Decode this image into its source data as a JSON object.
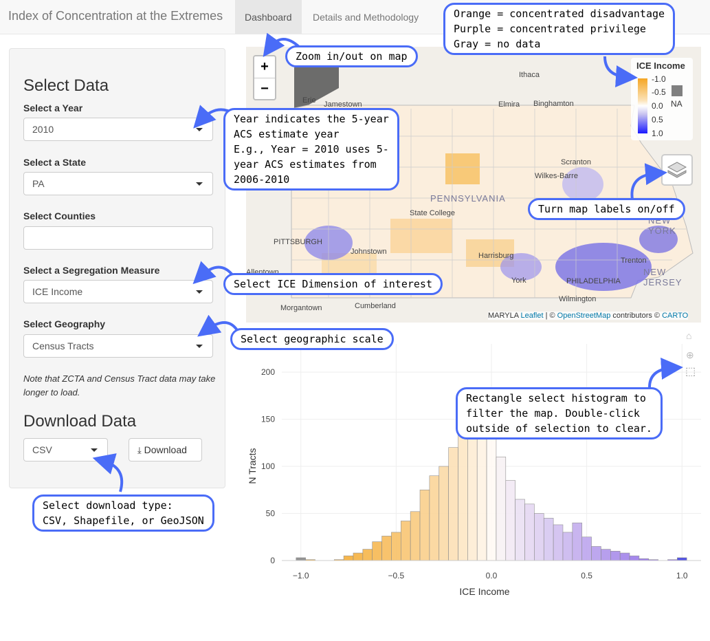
{
  "navbar": {
    "brand": "Index of Concentration at the Extremes",
    "tabs": [
      "Dashboard",
      "Details and Methodology"
    ]
  },
  "sidebar": {
    "select_heading": "Select Data",
    "year": {
      "label": "Select a Year",
      "value": "2010"
    },
    "state": {
      "label": "Select a State",
      "value": "PA"
    },
    "counties": {
      "label": "Select Counties",
      "value": ""
    },
    "measure": {
      "label": "Select a Segregation Measure",
      "value": "ICE Income"
    },
    "geography": {
      "label": "Select Geography",
      "value": "Census Tracts"
    },
    "note": "Note that ZCTA and Census Tract data may take longer to load.",
    "download_heading": "Download Data",
    "download_type": "CSV",
    "download_button": "Download"
  },
  "map": {
    "zoom_in": "+",
    "zoom_out": "−",
    "legend_title": "ICE Income",
    "legend_ticks": [
      "-1.0",
      "-0.5",
      "0.0",
      "0.5",
      "1.0"
    ],
    "legend_na": "NA",
    "attribution_prefix": "MARYLA",
    "attribution_leaflet": "Leaflet",
    "attribution_sep": " | © ",
    "attribution_osm": "OpenStreetMap",
    "attribution_mid": " contributors © ",
    "attribution_carto": "CARTO",
    "cities": [
      "Erie",
      "Jamestown",
      "Ithaca",
      "Elmira",
      "Binghamton",
      "Scranton",
      "Wilkes-Barre",
      "State College",
      "PITTSBURGH",
      "Johnstown",
      "Harrisburg",
      "York",
      "PHILADELPHIA",
      "Trenton",
      "Wilmington",
      "Morgantown",
      "Cumberland",
      "Allentown"
    ],
    "states": [
      "PENNSYLVANIA",
      "NEW JERSEY",
      "NEW YORK"
    ]
  },
  "callouts": {
    "colors": "Orange = concentrated disadvantage\nPurple = concentrated privilege\nGray = no data",
    "zoom": "Zoom in/out on map",
    "year": "Year indicates the 5-year\nACS estimate year\nE.g., Year = 2010 uses 5-\nyear ACS estimates from\n2006-2010",
    "labels": "Turn map labels on/off",
    "dimension": "Select ICE Dimension of interest",
    "scale": "Select geographic scale",
    "rect": "Rectangle select histogram to\nfilter the map. Double-click\noutside of selection to clear.",
    "download": "Select download type:\nCSV, Shapefile, or GeoJSON"
  },
  "colors": {
    "accent": "#4a6cf7",
    "orange": "#f5a623",
    "purple": "#7b52e6"
  },
  "chart_data": {
    "type": "bar",
    "title": "",
    "xlabel": "ICE Income",
    "ylabel": "N Tracts",
    "xlim": [
      -1.1,
      1.1
    ],
    "ylim": [
      0,
      230
    ],
    "xticks": [
      -1.0,
      -0.5,
      0.0,
      0.5,
      1.0
    ],
    "xtick_labels": [
      "−1.0",
      "−0.5",
      "0.0",
      "0.5",
      "1.0"
    ],
    "yticks": [
      0,
      50,
      100,
      150,
      200
    ],
    "bin_width": 0.05,
    "x": [
      -1.0,
      -0.95,
      -0.9,
      -0.85,
      -0.8,
      -0.75,
      -0.7,
      -0.65,
      -0.6,
      -0.55,
      -0.5,
      -0.45,
      -0.4,
      -0.35,
      -0.3,
      -0.25,
      -0.2,
      -0.15,
      -0.1,
      -0.05,
      0.0,
      0.05,
      0.1,
      0.15,
      0.2,
      0.25,
      0.3,
      0.35,
      0.4,
      0.45,
      0.5,
      0.55,
      0.6,
      0.65,
      0.7,
      0.75,
      0.8,
      0.85,
      0.9,
      0.95,
      1.0
    ],
    "values": [
      3,
      1,
      0,
      0,
      1,
      5,
      8,
      12,
      20,
      26,
      30,
      42,
      52,
      75,
      90,
      100,
      120,
      140,
      150,
      145,
      130,
      110,
      85,
      65,
      60,
      50,
      45,
      38,
      30,
      40,
      25,
      15,
      12,
      10,
      8,
      5,
      2,
      1,
      0,
      1,
      3
    ]
  }
}
